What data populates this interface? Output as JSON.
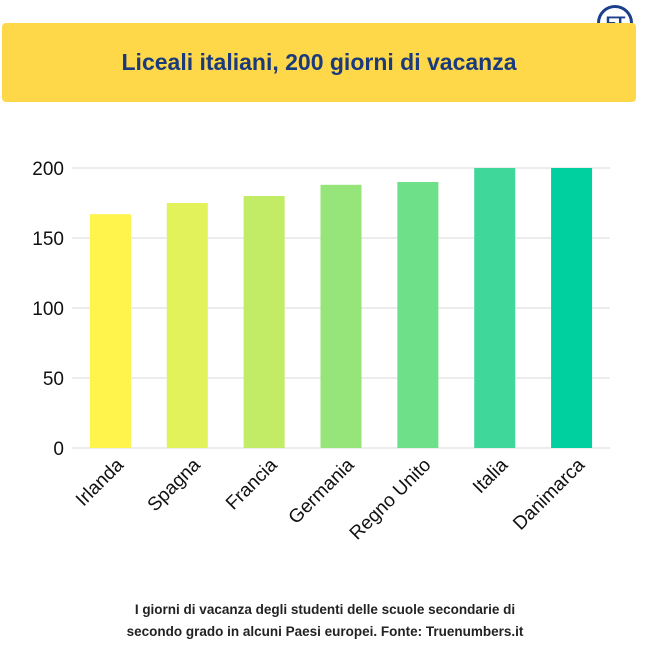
{
  "logo": {
    "text": "FT",
    "icon": "ft-logo-icon"
  },
  "header": {
    "title": "Liceali italiani, 200 giorni di vacanza",
    "background": "#ffd84a",
    "title_color": "#1b3a7c"
  },
  "caption": {
    "line1": "I giorni di vacanza degli studenti delle scuole secondarie di",
    "line2": "secondo grado in alcuni Paesi europei. Fonte: Truenumbers.it"
  },
  "chart_data": {
    "type": "bar",
    "categories": [
      "Irlanda",
      "Spagna",
      "Francia",
      "Germania",
      "Regno Unito",
      "Italia",
      "Danimarca"
    ],
    "values": [
      167,
      175,
      180,
      188,
      190,
      200,
      200
    ],
    "colors": [
      "#fef44c",
      "#e2f25a",
      "#c2ec66",
      "#96e57a",
      "#6fe08a",
      "#3fd79a",
      "#00cf9f"
    ],
    "ylim": [
      0,
      200
    ],
    "yticks": [
      0,
      50,
      100,
      150,
      200
    ],
    "grid": true,
    "gridline_color": "#d9d9d9",
    "title": "",
    "xlabel": "",
    "ylabel": ""
  }
}
